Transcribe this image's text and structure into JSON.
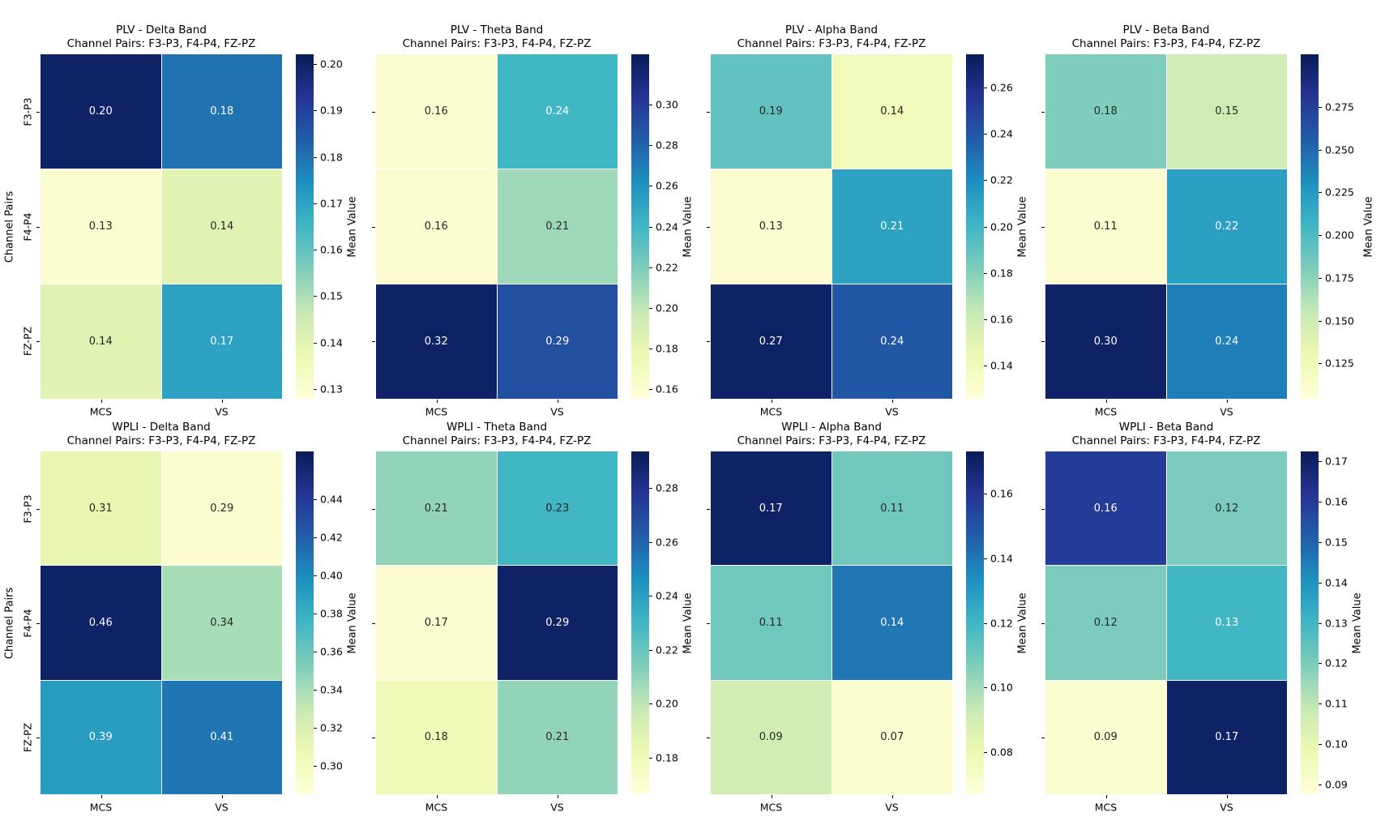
{
  "figure": {
    "background": "#ffffff",
    "colormap": "YlGnBu",
    "ylabel": "Channel Pairs",
    "colorbar_label": "Mean Value",
    "x_categories": [
      "MCS",
      "VS"
    ],
    "y_categories": [
      "F3-P3",
      "F4-P4",
      "FZ-PZ"
    ],
    "annot_dark_color": "#262626",
    "annot_white_color": "#ffffff",
    "colormap_stops": [
      "#ffffd9",
      "#edf8b1",
      "#c7e9b4",
      "#7fcdbb",
      "#41b6c4",
      "#1d91c0",
      "#225ea8",
      "#253494",
      "#081d58"
    ]
  },
  "chart_data": [
    {
      "type": "heatmap",
      "measure": "PLV",
      "band": "Delta",
      "title": "PLV - Delta Band",
      "subtitle": "Channel Pairs: F3-P3, F4-P4, FZ-PZ",
      "x": [
        "MCS",
        "VS"
      ],
      "y": [
        "F3-P3",
        "F4-P4",
        "FZ-PZ"
      ],
      "values": [
        [
          0.2,
          0.18
        ],
        [
          0.13,
          0.14
        ],
        [
          0.14,
          0.17
        ]
      ],
      "white_text": [
        [
          true,
          true
        ],
        [
          false,
          false
        ],
        [
          false,
          true
        ]
      ],
      "cbar_ticks": [
        "0.13",
        "0.14",
        "0.15",
        "0.16",
        "0.17",
        "0.18",
        "0.19",
        "0.20"
      ],
      "cbar_label": "Mean Value"
    },
    {
      "type": "heatmap",
      "measure": "PLV",
      "band": "Theta",
      "title": "PLV - Theta Band",
      "subtitle": "Channel Pairs: F3-P3, F4-P4, FZ-PZ",
      "x": [
        "MCS",
        "VS"
      ],
      "y": [
        "F3-P3",
        "F4-P4",
        "FZ-PZ"
      ],
      "values": [
        [
          0.16,
          0.24
        ],
        [
          0.16,
          0.21
        ],
        [
          0.32,
          0.29
        ]
      ],
      "white_text": [
        [
          false,
          true
        ],
        [
          false,
          false
        ],
        [
          true,
          true
        ]
      ],
      "cbar_ticks": [
        "0.16",
        "0.18",
        "0.20",
        "0.22",
        "0.24",
        "0.26",
        "0.28",
        "0.30"
      ],
      "cbar_label": "Mean Value"
    },
    {
      "type": "heatmap",
      "measure": "PLV",
      "band": "Alpha",
      "title": "PLV - Alpha Band",
      "subtitle": "Channel Pairs: F3-P3, F4-P4, FZ-PZ",
      "x": [
        "MCS",
        "VS"
      ],
      "y": [
        "F3-P3",
        "F4-P4",
        "FZ-PZ"
      ],
      "values": [
        [
          0.19,
          0.14
        ],
        [
          0.13,
          0.21
        ],
        [
          0.27,
          0.24
        ]
      ],
      "white_text": [
        [
          false,
          false
        ],
        [
          false,
          true
        ],
        [
          true,
          true
        ]
      ],
      "cbar_ticks": [
        "0.14",
        "0.16",
        "0.18",
        "0.20",
        "0.22",
        "0.24",
        "0.26"
      ],
      "cbar_label": "Mean Value"
    },
    {
      "type": "heatmap",
      "measure": "PLV",
      "band": "Beta",
      "title": "PLV - Beta Band",
      "subtitle": "Channel Pairs: F3-P3, F4-P4, FZ-PZ",
      "x": [
        "MCS",
        "VS"
      ],
      "y": [
        "F3-P3",
        "F4-P4",
        "FZ-PZ"
      ],
      "values": [
        [
          0.18,
          0.15
        ],
        [
          0.11,
          0.22
        ],
        [
          0.3,
          0.24
        ]
      ],
      "white_text": [
        [
          false,
          false
        ],
        [
          false,
          true
        ],
        [
          true,
          true
        ]
      ],
      "cbar_ticks": [
        "0.125",
        "0.150",
        "0.175",
        "0.200",
        "0.225",
        "0.250",
        "0.275"
      ],
      "cbar_label": "Mean Value"
    },
    {
      "type": "heatmap",
      "measure": "WPLI",
      "band": "Delta",
      "title": "WPLI - Delta Band",
      "subtitle": "Channel Pairs: F3-P3, F4-P4, FZ-PZ",
      "x": [
        "MCS",
        "VS"
      ],
      "y": [
        "F3-P3",
        "F4-P4",
        "FZ-PZ"
      ],
      "values": [
        [
          0.31,
          0.29
        ],
        [
          0.46,
          0.34
        ],
        [
          0.39,
          0.41
        ]
      ],
      "white_text": [
        [
          false,
          false
        ],
        [
          true,
          false
        ],
        [
          true,
          true
        ]
      ],
      "cbar_ticks": [
        "0.30",
        "0.32",
        "0.34",
        "0.36",
        "0.38",
        "0.40",
        "0.42",
        "0.44"
      ],
      "cbar_label": "Mean Value"
    },
    {
      "type": "heatmap",
      "measure": "WPLI",
      "band": "Theta",
      "title": "WPLI - Theta Band",
      "subtitle": "Channel Pairs: F3-P3, F4-P4, FZ-PZ",
      "x": [
        "MCS",
        "VS"
      ],
      "y": [
        "F3-P3",
        "F4-P4",
        "FZ-PZ"
      ],
      "values": [
        [
          0.21,
          0.23
        ],
        [
          0.17,
          0.29
        ],
        [
          0.18,
          0.21
        ]
      ],
      "white_text": [
        [
          false,
          false
        ],
        [
          false,
          true
        ],
        [
          false,
          false
        ]
      ],
      "cbar_ticks": [
        "0.18",
        "0.20",
        "0.22",
        "0.24",
        "0.26",
        "0.28"
      ],
      "cbar_label": "Mean Value"
    },
    {
      "type": "heatmap",
      "measure": "WPLI",
      "band": "Alpha",
      "title": "WPLI - Alpha Band",
      "subtitle": "Channel Pairs: F3-P3, F4-P4, FZ-PZ",
      "x": [
        "MCS",
        "VS"
      ],
      "y": [
        "F3-P3",
        "F4-P4",
        "FZ-PZ"
      ],
      "values": [
        [
          0.17,
          0.11
        ],
        [
          0.11,
          0.14
        ],
        [
          0.09,
          0.07
        ]
      ],
      "white_text": [
        [
          true,
          false
        ],
        [
          false,
          true
        ],
        [
          false,
          false
        ]
      ],
      "cbar_ticks": [
        "0.08",
        "0.10",
        "0.12",
        "0.14",
        "0.16"
      ],
      "cbar_label": "Mean Value"
    },
    {
      "type": "heatmap",
      "measure": "WPLI",
      "band": "Beta",
      "title": "WPLI - Beta Band",
      "subtitle": "Channel Pairs: F3-P3, F4-P4, FZ-PZ",
      "x": [
        "MCS",
        "VS"
      ],
      "y": [
        "F3-P3",
        "F4-P4",
        "FZ-PZ"
      ],
      "values": [
        [
          0.16,
          0.12
        ],
        [
          0.12,
          0.13
        ],
        [
          0.09,
          0.17
        ]
      ],
      "white_text": [
        [
          true,
          false
        ],
        [
          false,
          true
        ],
        [
          false,
          true
        ]
      ],
      "cbar_ticks": [
        "0.09",
        "0.10",
        "0.11",
        "0.12",
        "0.13",
        "0.14",
        "0.15",
        "0.16",
        "0.17"
      ],
      "cbar_label": "Mean Value"
    }
  ]
}
